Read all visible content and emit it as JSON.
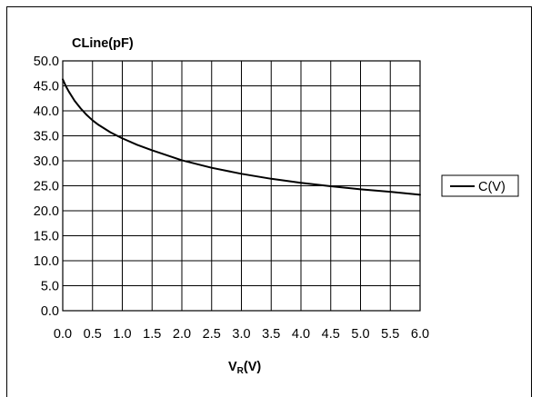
{
  "chart_data": {
    "type": "line",
    "ylabel": "CLine(pF)",
    "xlabel_main": "V",
    "xlabel_sub": "R",
    "xlabel_tail": "(V)",
    "xlim": [
      0,
      6
    ],
    "ylim": [
      0,
      50
    ],
    "grid": true,
    "legend_position": "right",
    "x_ticks": [
      "0.0",
      "0.5",
      "1.0",
      "1.5",
      "2.0",
      "2.5",
      "3.0",
      "3.5",
      "4.0",
      "4.5",
      "5.0",
      "5.5",
      "6.0"
    ],
    "y_ticks": [
      "0.0",
      "5.0",
      "10.0",
      "15.0",
      "20.0",
      "25.0",
      "30.0",
      "35.0",
      "40.0",
      "45.0",
      "50.0"
    ],
    "series": [
      {
        "name": "C(V)",
        "color": "#000000",
        "x": [
          0,
          0.05,
          0.1,
          0.2,
          0.3,
          0.4,
          0.5,
          0.6,
          0.8,
          1.0,
          1.25,
          1.5,
          2.0,
          2.5,
          3.0,
          3.5,
          4.0,
          4.5,
          5.0,
          5.5,
          6.0
        ],
        "y": [
          46.3,
          45.0,
          43.9,
          42.0,
          40.5,
          39.2,
          38.1,
          37.2,
          35.7,
          34.5,
          33.2,
          32.1,
          30.1,
          28.6,
          27.4,
          26.4,
          25.6,
          24.9,
          24.3,
          23.8,
          23.2
        ]
      }
    ]
  }
}
